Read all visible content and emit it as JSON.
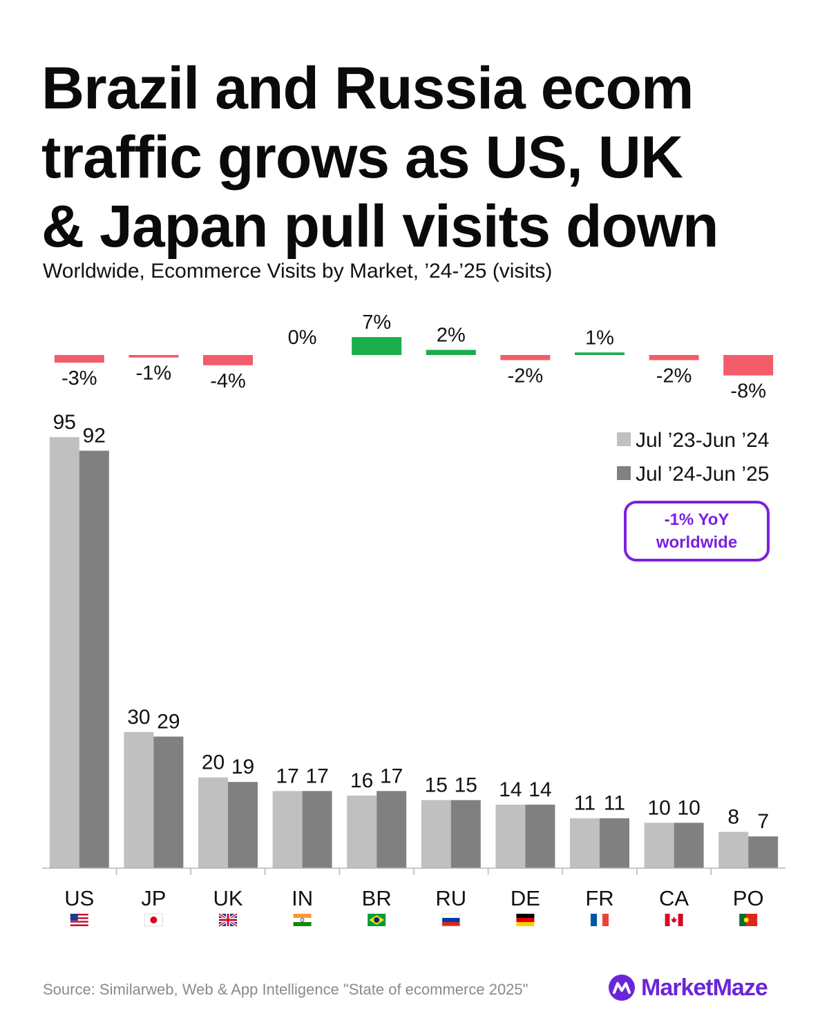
{
  "title_lines": [
    "Brazil and Russia ecom",
    "traffic grows as US, UK",
    "& Japan pull visits down"
  ],
  "subtitle": "Worldwide, Ecommerce Visits by Market, ’24-’25 (visits)",
  "callout": {
    "line1": "-1% YoY",
    "line2": "worldwide"
  },
  "source": "Source: Similarweb, Web & App Intelligence \"State of ecommerce 2025\"",
  "brand": {
    "name": "MarketMaze",
    "color": "#6b25d8"
  },
  "colors": {
    "prev": "#c0c0c0",
    "curr": "#808080",
    "negative": "#f25c6b",
    "positive": "#1aad4b"
  },
  "chart_data": {
    "type": "bar",
    "title": "Brazil and Russia ecom traffic grows as US, UK & Japan pull visits down",
    "subtitle": "Worldwide, Ecommerce Visits by Market, ’24-’25 (visits)",
    "categories": [
      "US",
      "JP",
      "UK",
      "IN",
      "BR",
      "RU",
      "DE",
      "FR",
      "CA",
      "PO"
    ],
    "flags": [
      "us-flag",
      "jp-flag",
      "uk-flag",
      "in-flag",
      "br-flag",
      "ru-flag",
      "de-flag",
      "fr-flag",
      "ca-flag",
      "po-flag"
    ],
    "series": [
      {
        "name": "Jul ’23-Jun ’24",
        "values": [
          95,
          30,
          20,
          17,
          16,
          15,
          14,
          11,
          10,
          8
        ]
      },
      {
        "name": "Jul ’24-Jun ’25",
        "values": [
          92,
          29,
          19,
          17,
          17,
          15,
          14,
          11,
          10,
          7
        ]
      }
    ],
    "yoy_change": {
      "values": [
        -3,
        -1,
        -4,
        0,
        7,
        2,
        -2,
        1,
        -2,
        -8
      ],
      "labels": [
        "-3%",
        "-1%",
        "-4%",
        "0%",
        "7%",
        "2%",
        "-2%",
        "1%",
        "-2%",
        "-8%"
      ]
    },
    "ylim": [
      0,
      100
    ],
    "legend": "top-right",
    "grid": false
  }
}
